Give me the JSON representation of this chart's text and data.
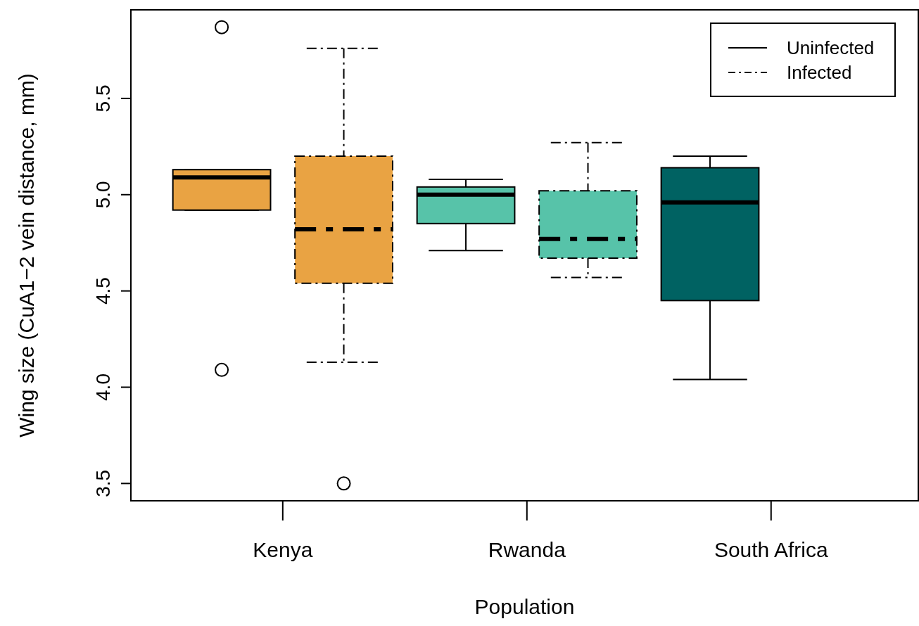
{
  "chart_data": {
    "type": "box",
    "xlabel": "Population",
    "ylabel": "Wing size (CuA1−2 vein distance, mm)",
    "categories": [
      "Kenya",
      "Rwanda",
      "South Africa"
    ],
    "ylim": [
      3.41,
      5.96
    ],
    "yticks": [
      3.5,
      {
        "value": 4,
        "label": "4.0"
      },
      4.5,
      {
        "value": 5,
        "label": "5.0"
      },
      5.5
    ],
    "grid": false,
    "legend": "top right",
    "marker": "circle",
    "series": [
      {
        "name": "Uninfected",
        "line_style": "solid",
        "colors": [
          "#e9a343",
          "#57c3a9",
          "#006262"
        ],
        "boxes": [
          {
            "low": 4.92,
            "q1": 4.92,
            "median": 5.09,
            "q3": 5.13,
            "high": 5.13,
            "outliers": [
              5.87,
              4.09
            ]
          },
          {
            "low": 4.71,
            "q1": 4.85,
            "median": 5.0,
            "q3": 5.04,
            "high": 5.08
          },
          {
            "low": 4.04,
            "q1": 4.45,
            "median": 4.96,
            "q3": 5.14,
            "high": 5.2
          }
        ]
      },
      {
        "name": "Infected",
        "line_style": "dashed",
        "colors": [
          "#e9a343",
          "#57c3a9",
          null
        ],
        "boxes": [
          {
            "low": 4.13,
            "q1": 4.54,
            "median": 4.82,
            "q3": 5.2,
            "high": 5.76,
            "outliers": [
              3.5
            ]
          },
          {
            "low": 4.57,
            "q1": 4.67,
            "median": 4.77,
            "q3": 5.02,
            "high": 5.27
          },
          null
        ]
      }
    ]
  }
}
